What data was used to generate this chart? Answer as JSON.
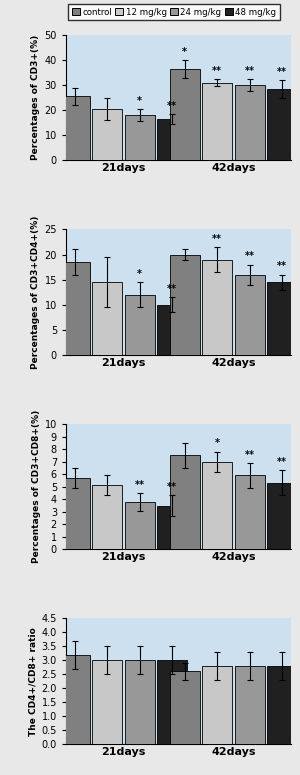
{
  "legend_labels": [
    "control",
    "12 mg/kg",
    "24 mg/kg",
    "48 mg/kg"
  ],
  "bar_colors": [
    "#808080",
    "#c8c8c8",
    "#989898",
    "#202020"
  ],
  "group_labels": [
    "21days",
    "42days"
  ],
  "plots": [
    {
      "ylabel": "Percentages of CD3+(%)",
      "ylim": [
        0,
        50
      ],
      "yticks": [
        0,
        10,
        20,
        30,
        40,
        50
      ],
      "values": [
        [
          25.5,
          20.5,
          18.0,
          16.5
        ],
        [
          36.5,
          31.0,
          30.0,
          28.5
        ]
      ],
      "errors": [
        [
          3.5,
          4.5,
          2.5,
          2.0
        ],
        [
          3.5,
          1.5,
          2.5,
          3.5
        ]
      ],
      "sig": [
        [
          "",
          "",
          "*",
          "**"
        ],
        [
          "*",
          "**",
          "**",
          "**"
        ]
      ]
    },
    {
      "ylabel": "Percentages of CD3+CD4+(%)",
      "ylim": [
        0,
        25
      ],
      "yticks": [
        0,
        5,
        10,
        15,
        20,
        25
      ],
      "values": [
        [
          18.5,
          14.5,
          12.0,
          10.0
        ],
        [
          20.0,
          19.0,
          16.0,
          14.5
        ]
      ],
      "errors": [
        [
          2.5,
          5.0,
          2.5,
          1.5
        ],
        [
          1.0,
          2.5,
          2.0,
          1.5
        ]
      ],
      "sig": [
        [
          "",
          "",
          "*",
          "**"
        ],
        [
          "",
          "**",
          "**",
          "**"
        ]
      ]
    },
    {
      "ylabel": "Percentages of CD3+CD8+(%)",
      "ylim": [
        0,
        10
      ],
      "yticks": [
        0,
        1,
        2,
        3,
        4,
        5,
        6,
        7,
        8,
        9,
        10
      ],
      "values": [
        [
          5.7,
          5.1,
          3.8,
          3.5
        ],
        [
          7.5,
          7.0,
          5.9,
          5.3
        ]
      ],
      "errors": [
        [
          0.8,
          0.8,
          0.7,
          0.8
        ],
        [
          1.0,
          0.8,
          1.0,
          1.0
        ]
      ],
      "sig": [
        [
          "",
          "",
          "**",
          "**"
        ],
        [
          "",
          "*",
          "**",
          "**"
        ]
      ]
    },
    {
      "ylabel": "The CD4+/CD8+ ratio",
      "ylim": [
        0,
        4.5
      ],
      "yticks": [
        0.0,
        0.5,
        1.0,
        1.5,
        2.0,
        2.5,
        3.0,
        3.5,
        4.0,
        4.5
      ],
      "values": [
        [
          3.2,
          3.0,
          3.0,
          3.0
        ],
        [
          2.6,
          2.8,
          2.8,
          2.8
        ]
      ],
      "errors": [
        [
          0.5,
          0.5,
          0.5,
          0.5
        ],
        [
          0.3,
          0.5,
          0.5,
          0.5
        ]
      ],
      "sig": [
        [
          "",
          "",
          "",
          ""
        ],
        [
          "",
          "",
          "",
          ""
        ]
      ]
    }
  ],
  "background_color": "#cce0f0",
  "outer_bg": "#e8e8e8",
  "bar_width": 0.12,
  "figsize": [
    3.0,
    7.75
  ],
  "dpi": 100
}
